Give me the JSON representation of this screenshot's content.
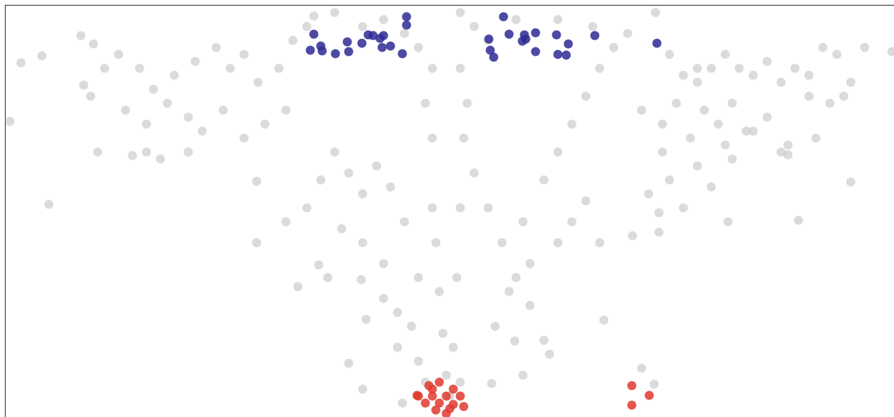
{
  "chart_data": {
    "type": "scatter",
    "xlim": [
      0,
      128.2
    ],
    "ylim": [
      0,
      59.8
    ],
    "series": [
      {
        "color": "#bdbdbd",
        "x": [
          3,
          6,
          1.4,
          7,
          11.6,
          13.4,
          12,
          15,
          17,
          20,
          22,
          25,
          28,
          31,
          33,
          35,
          37,
          40,
          42,
          44,
          13,
          18,
          21,
          24,
          27,
          29,
          32,
          35,
          38,
          41,
          14,
          19,
          21,
          23,
          27,
          36.8,
          36.8,
          42.7,
          41,
          44,
          46,
          48,
          50,
          52,
          54,
          56,
          49,
          52,
          55,
          58,
          47,
          51.8,
          45.7,
          52.5,
          55,
          57,
          50,
          52,
          57,
          57.7,
          60,
          59,
          60,
          61,
          61,
          62,
          62,
          62.5,
          63,
          63.5,
          64,
          64.5,
          62,
          60,
          58,
          55,
          48,
          45,
          52,
          66,
          68,
          70,
          66,
          67,
          66.5,
          66,
          65.5,
          65,
          66,
          68,
          70,
          72,
          74,
          76,
          78,
          70.5,
          73,
          75,
          78,
          80,
          82,
          84,
          86,
          88,
          90,
          94,
          96,
          98,
          100,
          102,
          104,
          106,
          108,
          110,
          112,
          114,
          116,
          118,
          120,
          122,
          124,
          127.9,
          92,
          95,
          97,
          99,
          101,
          103,
          105,
          107,
          110,
          113,
          116,
          119,
          121,
          95,
          100,
          104,
          108,
          112,
          117,
          93,
          96,
          98,
          102,
          105,
          94.5,
          94.5,
          104.4,
          114.5,
          122,
          113,
          90.7,
          86.6,
          86,
          82,
          84,
          76,
          80,
          78.8,
          73.8,
          71,
          75,
          93.8,
          92,
          100,
          80,
          85,
          74
        ],
        "values": [
          50.8,
          51.8,
          42.4,
          30.5,
          54.7,
          53.5,
          47.6,
          50,
          52,
          50,
          47,
          49,
          51,
          53,
          50,
          52,
          48,
          50,
          54,
          56,
          46,
          44,
          42,
          45,
          43,
          41,
          44,
          40,
          42,
          44,
          38,
          37.5,
          38,
          37,
          38,
          25,
          33.8,
          18.7,
          28,
          30,
          34,
          38,
          35,
          32,
          36,
          33,
          27,
          25,
          22,
          28,
          20,
          19.7,
          21.8,
          14,
          17,
          15,
          7.7,
          4,
          10,
          2,
          20,
          13,
          8,
          5,
          45,
          40,
          30,
          25,
          18,
          12,
          6,
          3,
          50,
          53,
          55,
          57,
          58,
          57.5,
          56,
          58,
          56,
          54,
          50,
          45,
          40,
          30,
          20,
          10,
          5,
          35,
          30,
          25,
          20,
          16,
          11,
          4.8,
          18,
          28,
          34,
          38,
          42,
          46,
          50,
          53,
          55,
          58,
          52,
          49,
          48,
          50,
          52,
          50,
          49,
          51,
          48,
          50,
          49,
          53,
          52,
          48,
          53,
          52.4,
          44,
          42,
          45,
          40,
          44,
          42,
          45,
          41,
          43,
          39,
          46,
          45,
          46,
          38,
          36,
          39,
          41,
          38,
          40,
          32,
          34,
          30,
          33,
          37,
          29.3,
          26.5,
          28,
          28.2,
          33.7,
          37.6,
          26,
          13.9,
          25,
          28,
          31,
          22,
          25,
          9,
          10.9,
          13,
          6,
          4.7,
          7,
          50,
          57,
          56,
          57
        ]
      },
      {
        "color": "#2e2a94",
        "x": [
          45,
          44.5,
          46,
          46.2,
          48.1,
          49.8,
          50,
          51.9,
          52.8,
          53.5,
          54.5,
          55,
          54.8,
          56,
          57.7,
          58.3,
          58.3,
          72.2,
          70.1,
          70.3,
          70.8,
          73,
          74.9,
          75.2,
          76.8,
          75.4,
          76.8,
          79.8,
          81.5,
          80,
          81.2,
          85.3,
          94.2
        ],
        "values": [
          54.9,
          52.6,
          53.2,
          52.5,
          52.1,
          53.8,
          52.4,
          53.6,
          54.8,
          54.7,
          54.3,
          54.7,
          53,
          53.2,
          52.1,
          57.4,
          56.2,
          57.4,
          54.2,
          52.6,
          51.6,
          54.9,
          53.9,
          54.8,
          55.1,
          54.2,
          52.4,
          54.8,
          53.5,
          52,
          51.9,
          54.7,
          53.6
        ]
      },
      {
        "color": "#e03a2f",
        "x": [
          60,
          61,
          62,
          63,
          64,
          65,
          66,
          62.5,
          64,
          63,
          61.5,
          65,
          66.5,
          59.8,
          90.6,
          93.1,
          90.6,
          62,
          64.5
        ],
        "values": [
          3,
          2,
          4,
          5,
          3,
          4,
          3,
          1,
          0.5,
          2,
          4.5,
          1.8,
          1.5,
          3.1,
          4.5,
          3.1,
          1.7,
          3,
          1.2
        ]
      }
    ]
  }
}
